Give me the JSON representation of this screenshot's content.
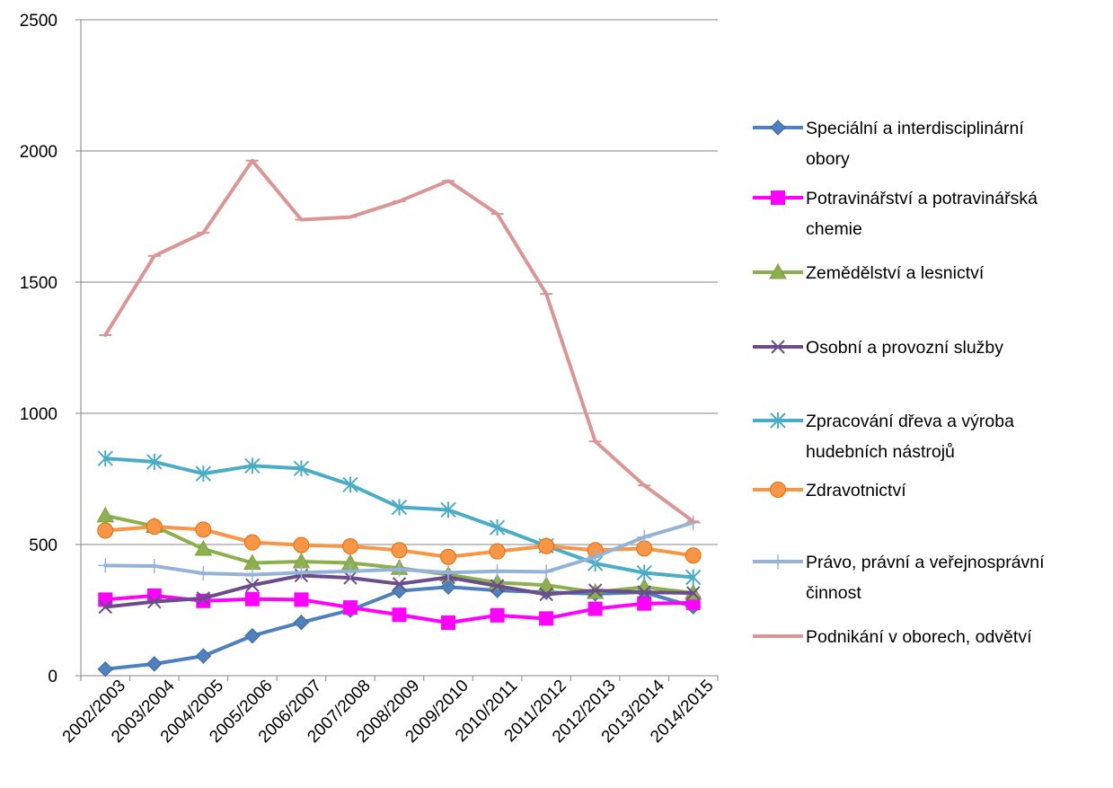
{
  "chart_data": {
    "type": "line",
    "title": "",
    "xlabel": "",
    "ylabel": "",
    "ylim": [
      0,
      2500
    ],
    "yticks": [
      0,
      500,
      1000,
      1500,
      2000,
      2500
    ],
    "grid": "horizontal",
    "legend_position": "right",
    "categories": [
      "2002/2003",
      "2003/2004",
      "2004/2005",
      "2005/2006",
      "2006/2007",
      "2007/2008",
      "2008/2009",
      "2009/2010",
      "2010/2011",
      "2011/2012",
      "2012/2013",
      "2013/2014",
      "2014/2015"
    ],
    "series": [
      {
        "name": "Speciální a interdisciplinární obory",
        "legend_lines": [
          "Speciální a interdisciplinární",
          "obory"
        ],
        "color": "#4F81BD",
        "stroke": "#3A67A3",
        "marker": "diamond",
        "values": [
          25,
          45,
          75,
          152,
          203,
          250,
          323,
          338,
          325,
          318,
          312,
          318,
          263
        ]
      },
      {
        "name": "Potravinářství a potravinářská chemie",
        "legend_lines": [
          "Potravinářství a potravinářská",
          "chemie"
        ],
        "color": "#FF00FF",
        "stroke": "#FF00FF",
        "marker": "square",
        "values": [
          290,
          305,
          285,
          292,
          290,
          260,
          232,
          202,
          230,
          218,
          255,
          275,
          278
        ]
      },
      {
        "name": "Zemědělství a lesnictví",
        "legend_lines": [
          "Zemědělství a lesnictví"
        ],
        "color": "#8CB04F",
        "stroke": "#7F9F47",
        "marker": "triangle",
        "values": [
          610,
          570,
          483,
          430,
          435,
          430,
          410,
          385,
          355,
          345,
          318,
          338,
          315
        ]
      },
      {
        "name": "Osobní a provozní služby",
        "legend_lines": [
          "Osobní a provozní služby"
        ],
        "color": "#6A4D8A",
        "stroke": "#604A7B",
        "marker": "x",
        "values": [
          262,
          282,
          295,
          345,
          382,
          373,
          350,
          375,
          342,
          310,
          325,
          318,
          315
        ]
      },
      {
        "name": "Zpracování dřeva a výroba hudebních nástrojů",
        "legend_lines": [
          "Zpracování dřeva a výroba",
          "hudebních nástrojů"
        ],
        "color": "#4BACC6",
        "stroke": "#31859C",
        "marker": "star",
        "values": [
          828,
          815,
          770,
          800,
          790,
          728,
          642,
          632,
          565,
          495,
          428,
          392,
          375
        ]
      },
      {
        "name": "Zdravotnictví",
        "legend_lines": [
          "Zdravotnictví"
        ],
        "color": "#F79646",
        "stroke": "#E46C0A",
        "marker": "circle",
        "values": [
          553,
          568,
          557,
          508,
          498,
          493,
          478,
          453,
          474,
          494,
          478,
          485,
          458
        ]
      },
      {
        "name": "Právo, právní a veřejnosprávní činnost",
        "legend_lines": [
          "Právo, právní a veřejnosprávní",
          "činnost"
        ],
        "color": "#95B3D7",
        "stroke": "#95B3D7",
        "marker": "plus",
        "values": [
          420,
          418,
          390,
          385,
          393,
          398,
          405,
          393,
          398,
          396,
          453,
          528,
          583
        ]
      },
      {
        "name": "Podnikání v oborech, odvětví",
        "legend_lines": [
          "Podnikání v oborech, odvětví"
        ],
        "color": "#D99694",
        "stroke": "#D99694",
        "marker": "dash",
        "values": [
          1298,
          1600,
          1688,
          1963,
          1738,
          1748,
          1808,
          1886,
          1760,
          1455,
          893,
          725,
          588
        ]
      }
    ]
  }
}
